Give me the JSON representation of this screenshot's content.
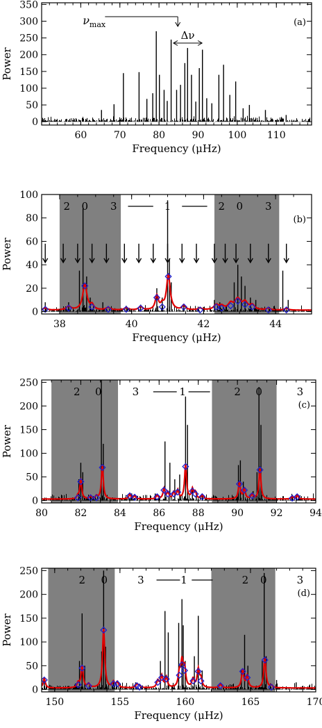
{
  "figure": {
    "background": "#ffffff",
    "colors": {
      "spectrum": "#000000",
      "fit": "#e00000",
      "peaks": "#1f1fcc",
      "shade": "#808080"
    }
  },
  "chart_data": [
    {
      "id": "a",
      "type": "line",
      "panel_label": "(a)",
      "xlabel": "Frequency (μHz)",
      "ylabel": "Power",
      "xlim": [
        50,
        119
      ],
      "ylim": [
        -10,
        355
      ],
      "xticks": [
        60,
        70,
        80,
        90,
        100,
        110
      ],
      "yticks": [
        0,
        50,
        100,
        150,
        200,
        250,
        300,
        350
      ],
      "annotations": {
        "numax_label": "ν",
        "numax_sub": "max",
        "dnu_label": "Δν",
        "numax_value": 84.8,
        "dnu_range": [
          83.7,
          91.0
        ]
      },
      "peaks": [
        [
          65.3,
          35
        ],
        [
          68.5,
          52
        ],
        [
          70.9,
          145
        ],
        [
          74.9,
          148
        ],
        [
          76.9,
          68
        ],
        [
          78.4,
          85
        ],
        [
          79.3,
          270
        ],
        [
          80.1,
          140
        ],
        [
          81.3,
          95
        ],
        [
          82.1,
          62
        ],
        [
          83.1,
          245
        ],
        [
          84.5,
          95
        ],
        [
          85.5,
          110
        ],
        [
          86.6,
          175
        ],
        [
          87.3,
          220
        ],
        [
          88.3,
          140
        ],
        [
          89.4,
          60
        ],
        [
          90.3,
          160
        ],
        [
          91.1,
          215
        ],
        [
          92.2,
          70
        ],
        [
          93.5,
          55
        ],
        [
          95.3,
          140
        ],
        [
          96.5,
          170
        ],
        [
          98.1,
          80
        ],
        [
          99.6,
          120
        ],
        [
          101.5,
          40
        ],
        [
          103.1,
          50
        ],
        [
          107.2,
          35
        ],
        [
          112.5,
          20
        ]
      ]
    },
    {
      "id": "b",
      "type": "line",
      "panel_label": "(b)",
      "xlabel": "Frequency (μHz)",
      "ylabel": "Power",
      "xlim": [
        37.5,
        45
      ],
      "ylim": [
        -2,
        100
      ],
      "xticks": [
        38,
        40,
        42,
        44
      ],
      "yticks": [
        0,
        20,
        40,
        60,
        80,
        100
      ],
      "degree_labels": [
        {
          "text": "2",
          "x": 38.2
        },
        {
          "text": "0",
          "x": 38.7
        },
        {
          "text": "3",
          "x": 39.5
        },
        {
          "text": "1",
          "x": 41.0
        },
        {
          "text": "2",
          "x": 42.5
        },
        {
          "text": "0",
          "x": 43.0
        },
        {
          "text": "3",
          "x": 43.8
        }
      ],
      "l1_bar": [
        [
          39.9,
          40.6
        ],
        [
          41.4,
          42.1
        ]
      ],
      "shaded": [
        [
          38.0,
          39.7
        ],
        [
          42.3,
          44.1
        ]
      ],
      "arrows_x": [
        37.6,
        38.1,
        38.5,
        38.9,
        39.3,
        39.8,
        40.2,
        40.6,
        41.0,
        41.4,
        41.8,
        42.3,
        42.6,
        42.9,
        43.3,
        43.8,
        44.3
      ],
      "peaks": [
        [
          37.6,
          8
        ],
        [
          38.25,
          8
        ],
        [
          38.55,
          35
        ],
        [
          38.65,
          88
        ],
        [
          38.75,
          30
        ],
        [
          38.85,
          12
        ],
        [
          39.2,
          8
        ],
        [
          39.85,
          5
        ],
        [
          40.25,
          6
        ],
        [
          40.7,
          20
        ],
        [
          40.85,
          12
        ],
        [
          41.0,
          95
        ],
        [
          41.05,
          45
        ],
        [
          41.1,
          25
        ],
        [
          41.45,
          6
        ],
        [
          42.0,
          4
        ],
        [
          42.3,
          10
        ],
        [
          42.45,
          8
        ],
        [
          42.85,
          25
        ],
        [
          42.95,
          40
        ],
        [
          43.05,
          30
        ],
        [
          43.15,
          22
        ],
        [
          43.3,
          12
        ],
        [
          43.45,
          10
        ],
        [
          44.2,
          35
        ],
        [
          44.35,
          10
        ]
      ],
      "fit_peaks": [
        [
          37.6,
          2,
          0.06
        ],
        [
          38.25,
          3,
          0.08
        ],
        [
          38.7,
          22,
          0.07
        ],
        [
          38.9,
          4,
          0.05
        ],
        [
          39.35,
          2,
          0.08
        ],
        [
          39.85,
          2,
          0.06
        ],
        [
          40.25,
          3,
          0.06
        ],
        [
          40.7,
          12,
          0.05
        ],
        [
          40.85,
          4,
          0.05
        ],
        [
          41.02,
          30,
          0.06
        ],
        [
          41.45,
          4,
          0.05
        ],
        [
          41.9,
          1.5,
          0.06
        ],
        [
          42.35,
          4,
          0.08
        ],
        [
          42.5,
          3,
          0.08
        ],
        [
          42.75,
          5,
          0.08
        ],
        [
          42.95,
          9,
          0.1
        ],
        [
          43.15,
          6,
          0.08
        ],
        [
          43.35,
          4,
          0.08
        ],
        [
          43.8,
          1.5,
          0.06
        ],
        [
          44.3,
          1.5,
          0.06
        ]
      ],
      "diamonds": [
        [
          37.6,
          2
        ],
        [
          38.25,
          3
        ],
        [
          38.7,
          22
        ],
        [
          38.9,
          4
        ],
        [
          39.35,
          2
        ],
        [
          39.85,
          2
        ],
        [
          40.25,
          3
        ],
        [
          40.7,
          12
        ],
        [
          40.85,
          4
        ],
        [
          41.02,
          30
        ],
        [
          41.45,
          4
        ],
        [
          41.9,
          1.5
        ],
        [
          42.35,
          4
        ],
        [
          42.5,
          3
        ],
        [
          42.75,
          5
        ],
        [
          42.95,
          9
        ],
        [
          43.15,
          6
        ],
        [
          43.35,
          4
        ],
        [
          43.8,
          1.5
        ],
        [
          44.3,
          1.5
        ]
      ]
    },
    {
      "id": "c",
      "type": "line",
      "panel_label": "(c)",
      "xlabel": "Frequency (μHz)",
      "ylabel": "Power",
      "xlim": [
        80,
        94
      ],
      "ylim": [
        -5,
        255
      ],
      "xticks": [
        80,
        82,
        84,
        86,
        88,
        90,
        92,
        94
      ],
      "yticks": [
        0,
        50,
        100,
        150,
        200,
        250
      ],
      "degree_labels": [
        {
          "text": "2",
          "x": 81.8
        },
        {
          "text": "0",
          "x": 82.9
        },
        {
          "text": "3",
          "x": 84.8
        },
        {
          "text": "1",
          "x": 87.2
        },
        {
          "text": "2",
          "x": 90.0
        },
        {
          "text": "0",
          "x": 91.1
        },
        {
          "text": "3",
          "x": 93.2
        }
      ],
      "l1_bar": [
        [
          85.7,
          86.9
        ],
        [
          87.5,
          88.6
        ]
      ],
      "shaded": [
        [
          80.5,
          83.9
        ],
        [
          88.7,
          92.0
        ]
      ],
      "peaks": [
        [
          81.9,
          45
        ],
        [
          82.0,
          80
        ],
        [
          82.1,
          60
        ],
        [
          82.5,
          10
        ],
        [
          83.05,
          270
        ],
        [
          83.15,
          120
        ],
        [
          84.6,
          15
        ],
        [
          84.9,
          10
        ],
        [
          85.8,
          15
        ],
        [
          86.3,
          125
        ],
        [
          86.55,
          80
        ],
        [
          86.8,
          45
        ],
        [
          87.05,
          55
        ],
        [
          87.35,
          220
        ],
        [
          87.45,
          160
        ],
        [
          87.7,
          30
        ],
        [
          87.9,
          20
        ],
        [
          88.2,
          15
        ],
        [
          90.05,
          75
        ],
        [
          90.15,
          85
        ],
        [
          90.3,
          40
        ],
        [
          90.8,
          20
        ],
        [
          91.0,
          60
        ],
        [
          91.1,
          240
        ],
        [
          91.2,
          160
        ],
        [
          92.8,
          12
        ],
        [
          93.0,
          8
        ]
      ],
      "fit_peaks": [
        [
          81.85,
          6,
          0.05
        ],
        [
          82.0,
          40,
          0.06
        ],
        [
          82.5,
          6,
          0.06
        ],
        [
          82.8,
          6,
          0.06
        ],
        [
          83.1,
          70,
          0.06
        ],
        [
          84.5,
          10,
          0.06
        ],
        [
          84.75,
          7,
          0.06
        ],
        [
          85.9,
          8,
          0.06
        ],
        [
          86.25,
          22,
          0.06
        ],
        [
          86.45,
          14,
          0.06
        ],
        [
          86.75,
          14,
          0.06
        ],
        [
          86.95,
          18,
          0.06
        ],
        [
          87.35,
          72,
          0.06
        ],
        [
          87.7,
          20,
          0.06
        ],
        [
          87.85,
          14,
          0.06
        ],
        [
          88.2,
          8,
          0.06
        ],
        [
          90.1,
          35,
          0.06
        ],
        [
          90.35,
          22,
          0.06
        ],
        [
          90.75,
          10,
          0.06
        ],
        [
          91.15,
          65,
          0.06
        ],
        [
          92.8,
          5,
          0.06
        ],
        [
          93.05,
          8,
          0.06
        ]
      ],
      "diamonds": [
        [
          81.85,
          6
        ],
        [
          82.0,
          40
        ],
        [
          82.5,
          6
        ],
        [
          82.8,
          6
        ],
        [
          83.1,
          70
        ],
        [
          84.5,
          10
        ],
        [
          84.75,
          7
        ],
        [
          85.9,
          8
        ],
        [
          86.25,
          22
        ],
        [
          86.45,
          14
        ],
        [
          86.75,
          14
        ],
        [
          86.95,
          18
        ],
        [
          87.35,
          72
        ],
        [
          87.7,
          20
        ],
        [
          87.85,
          14
        ],
        [
          88.2,
          8
        ],
        [
          90.1,
          35
        ],
        [
          90.35,
          22
        ],
        [
          90.75,
          10
        ],
        [
          91.15,
          65
        ],
        [
          92.8,
          5
        ],
        [
          93.05,
          8
        ]
      ]
    },
    {
      "id": "d",
      "type": "line",
      "panel_label": "(d)",
      "xlabel": "Frequency (μHz)",
      "ylabel": "Power",
      "xlim": [
        149,
        170
      ],
      "ylim": [
        -5,
        255
      ],
      "xticks": [
        150,
        155,
        160,
        165,
        170
      ],
      "yticks": [
        0,
        50,
        100,
        150,
        200,
        250
      ],
      "degree_labels": [
        {
          "text": "2",
          "x": 152.1
        },
        {
          "text": "0",
          "x": 153.8
        },
        {
          "text": "3",
          "x": 156.6
        },
        {
          "text": "1",
          "x": 159.9
        },
        {
          "text": "2",
          "x": 164.6
        },
        {
          "text": "0",
          "x": 166.0
        },
        {
          "text": "3",
          "x": 168.8
        }
      ],
      "l1_bar": [
        [
          157.8,
          159.6
        ],
        [
          160.5,
          162.1
        ]
      ],
      "shaded": [
        [
          149.5,
          154.6
        ],
        [
          162.0,
          166.9
        ]
      ],
      "peaks": [
        [
          149.2,
          20
        ],
        [
          151.9,
          60
        ],
        [
          152.1,
          160
        ],
        [
          152.3,
          50
        ],
        [
          153.6,
          80
        ],
        [
          153.75,
          250
        ],
        [
          153.9,
          90
        ],
        [
          154.5,
          20
        ],
        [
          156.2,
          15
        ],
        [
          158.1,
          60
        ],
        [
          158.45,
          165
        ],
        [
          158.7,
          120
        ],
        [
          159.5,
          140
        ],
        [
          159.75,
          190
        ],
        [
          159.85,
          135
        ],
        [
          160.0,
          60
        ],
        [
          160.7,
          70
        ],
        [
          161.0,
          155
        ],
        [
          161.3,
          40
        ],
        [
          164.3,
          40
        ],
        [
          164.55,
          115
        ],
        [
          164.8,
          50
        ],
        [
          165.9,
          60
        ],
        [
          166.05,
          245
        ],
        [
          166.2,
          70
        ],
        [
          167.0,
          20
        ],
        [
          168.5,
          15
        ]
      ],
      "fit_peaks": [
        [
          149.2,
          20,
          0.1
        ],
        [
          151.8,
          10,
          0.1
        ],
        [
          152.1,
          45,
          0.1
        ],
        [
          152.6,
          8,
          0.1
        ],
        [
          153.75,
          125,
          0.1
        ],
        [
          154.5,
          12,
          0.1
        ],
        [
          154.8,
          12,
          0.1
        ],
        [
          156.3,
          8,
          0.1
        ],
        [
          156.5,
          5,
          0.1
        ],
        [
          157.9,
          15,
          0.1
        ],
        [
          158.2,
          25,
          0.1
        ],
        [
          158.55,
          22,
          0.1
        ],
        [
          159.55,
          30,
          0.1
        ],
        [
          159.75,
          52,
          0.1
        ],
        [
          159.95,
          40,
          0.1
        ],
        [
          160.6,
          18,
          0.1
        ],
        [
          161.0,
          38,
          0.1
        ],
        [
          161.2,
          18,
          0.1
        ],
        [
          162.7,
          8,
          0.1
        ],
        [
          164.4,
          38,
          0.1
        ],
        [
          164.75,
          25,
          0.1
        ],
        [
          166.1,
          62,
          0.1
        ],
        [
          166.6,
          5,
          0.1
        ]
      ],
      "diamonds": [
        [
          149.2,
          20
        ],
        [
          151.8,
          10
        ],
        [
          152.1,
          45
        ],
        [
          152.6,
          8
        ],
        [
          153.75,
          125
        ],
        [
          154.5,
          12
        ],
        [
          154.8,
          12
        ],
        [
          156.3,
          8
        ],
        [
          156.5,
          5
        ],
        [
          157.9,
          15
        ],
        [
          158.2,
          25
        ],
        [
          158.55,
          22
        ],
        [
          159.55,
          30
        ],
        [
          159.75,
          52
        ],
        [
          159.95,
          40
        ],
        [
          160.6,
          18
        ],
        [
          161.0,
          38
        ],
        [
          161.2,
          18
        ],
        [
          162.7,
          8
        ],
        [
          164.4,
          38
        ],
        [
          164.75,
          25
        ],
        [
          166.1,
          62
        ],
        [
          166.6,
          5
        ]
      ]
    }
  ]
}
